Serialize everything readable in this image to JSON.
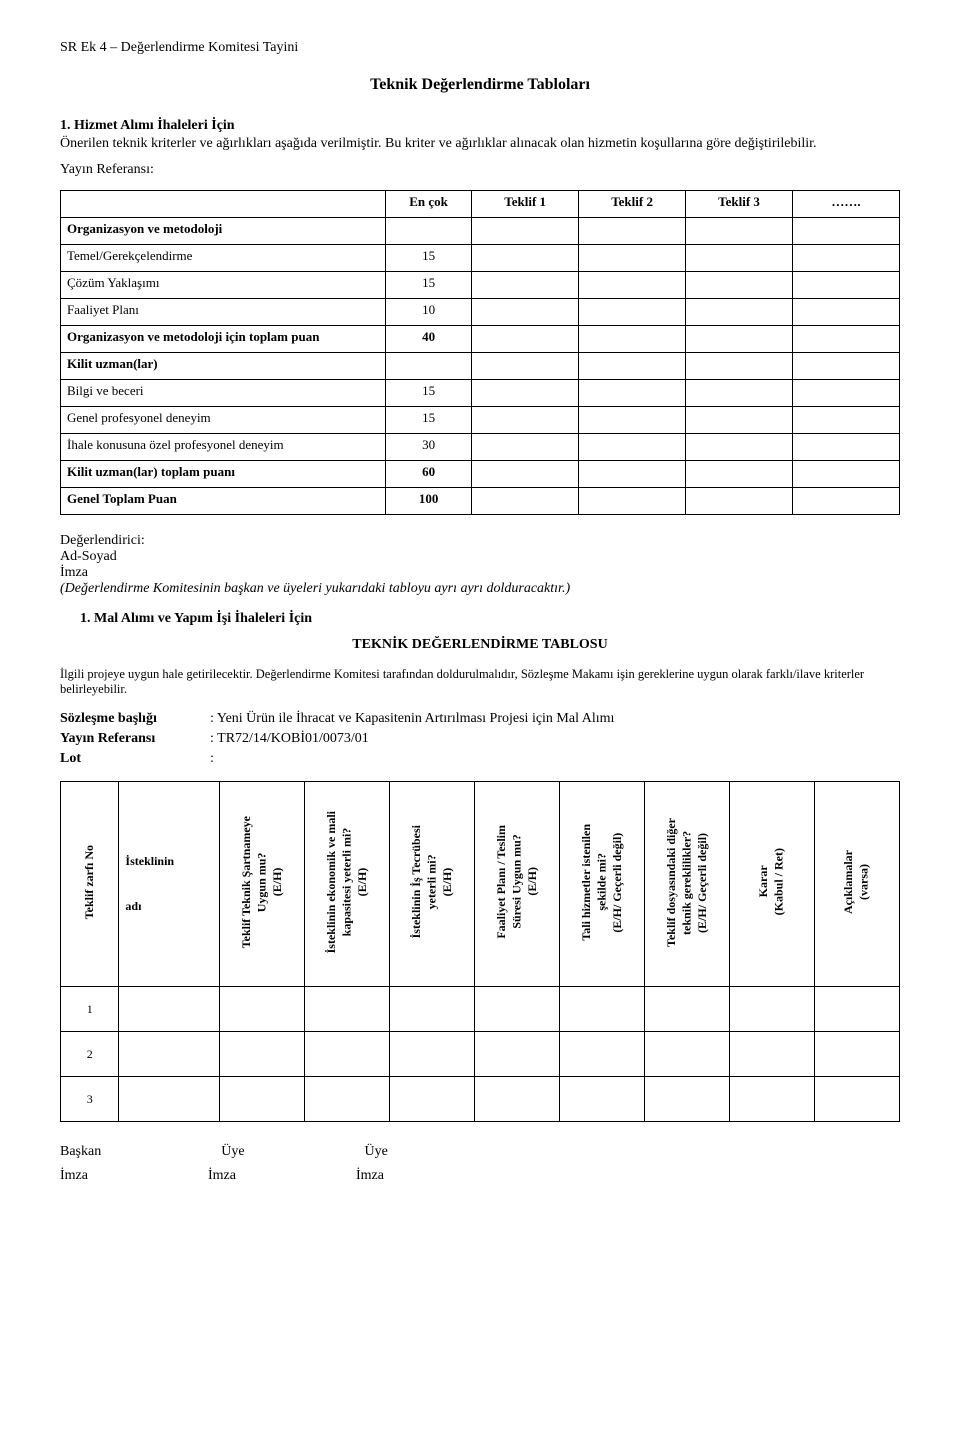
{
  "header": "SR Ek 4 – Değerlendirme Komitesi Tayini",
  "main_title": "Teknik Değerlendirme Tabloları",
  "sec1_heading": "1.  Hizmet Alımı İhaleleri İçin",
  "sec1_para": "Önerilen teknik kriterler ve ağırlıkları aşağıda verilmiştir. Bu kriter ve ağırlıklar alınacak olan hizmetin koşullarına göre değiştirilebilir.",
  "yayin_ref": "Yayın Referansı:",
  "eval_table": {
    "headers": [
      "",
      "En çok",
      "Teklif 1",
      "Teklif 2",
      "Teklif 3",
      "……."
    ],
    "rows": [
      {
        "label": "Organizasyon ve metodoloji",
        "bold": true,
        "val": ""
      },
      {
        "label": "Temel/Gerekçelendirme",
        "bold": false,
        "val": "15"
      },
      {
        "label": "Çözüm Yaklaşımı",
        "bold": false,
        "val": "15"
      },
      {
        "label": "Faaliyet Planı",
        "bold": false,
        "val": "10"
      },
      {
        "label": "Organizasyon ve metodoloji için toplam puan",
        "bold": true,
        "val": "40"
      },
      {
        "label": "Kilit uzman(lar)",
        "bold": true,
        "val": ""
      },
      {
        "label": "Bilgi ve beceri",
        "bold": false,
        "val": "15"
      },
      {
        "label": "Genel profesyonel deneyim",
        "bold": false,
        "val": "15"
      },
      {
        "label": "İhale konusuna özel profesyonel deneyim",
        "bold": false,
        "val": "30"
      },
      {
        "label": "Kilit uzman(lar) toplam puanı",
        "bold": true,
        "val": "60"
      },
      {
        "label": "Genel Toplam Puan",
        "bold": true,
        "val": "100"
      }
    ]
  },
  "evaluator": {
    "l1": "Değerlendirici:",
    "l2": "Ad-Soyad",
    "l3": "İmza",
    "l4": "(Değerlendirme Komitesinin başkan ve üyeleri yukarıdaki tabloyu ayrı ayrı dolduracaktır.)"
  },
  "sec2_heading": "1.  Mal Alımı ve Yapım İşi İhaleleri İçin",
  "sec2_title": "TEKNİK DEĞERLENDİRME TABLOSU",
  "sec2_para": "İlgili projeye uygun hale getirilecektir. Değerlendirme Komitesi tarafından doldurulmalıdır, Sözleşme Makamı işin gereklerine uygun olarak farklı/ilave kriterler belirleyebilir.",
  "kv": {
    "k1": "Sözleşme başlığı",
    "v1": ": Yeni Ürün ile İhracat ve Kapasitenin Artırılması Projesi için Mal Alımı",
    "k2": "Yayın Referansı",
    "v2": ": TR72/14/KOBİ01/0073/01",
    "k3": "Lot",
    "v3": ":"
  },
  "vert_headers": {
    "c1": "Teklif zarfı No",
    "c2a": "İsteklinin",
    "c2b": "adı",
    "c3": "Teklif Teknik Şartnameye\nUygun mu?\n(E/H)",
    "c4": "İsteklinin ekonomik ve mali\nkapasitesi yeterli mi?\n(E/H)",
    "c5": "İsteklinin İş Tecrübesi\nyeterli mi?\n(E/H)",
    "c6": "Faaliyet Planı / Teslim\nSüresi Uygun mu?\n(E/H)",
    "c7": "Tali hizmetler istenilen\nşekilde mi?\n(E/H/ Geçerli değil)",
    "c8": "Teklif dosyasındaki diğer\nteknik gereklilikler?\n(E/H/ Geçerli değil)",
    "c9": "Karar\n(Kabul / Ret)",
    "c10": "Açıklamalar\n(varsa)"
  },
  "vert_rows": [
    "1",
    "2",
    "3"
  ],
  "sign": {
    "r1": [
      "Başkan",
      "Üye",
      "Üye"
    ],
    "r2": [
      "İmza",
      "İmza",
      "İmza"
    ]
  }
}
